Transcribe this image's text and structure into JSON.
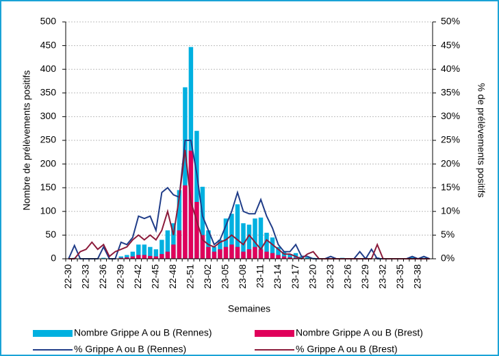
{
  "chart_data": {
    "type": "combo",
    "xlabel": "Semaines",
    "ylabel": "Nombre de prélèvements positifs",
    "y2label": "% de prélèvements positifs",
    "categories": [
      "22-30",
      null,
      null,
      "22-33",
      null,
      null,
      "22-36",
      null,
      null,
      "22-39",
      null,
      null,
      "22-42",
      null,
      null,
      "22-45",
      null,
      null,
      "22-48",
      null,
      null,
      "22-51",
      null,
      null,
      "23-02",
      null,
      null,
      "23-05",
      null,
      null,
      "23-08",
      null,
      null,
      "23-11",
      null,
      null,
      "23-14",
      null,
      null,
      "23-17",
      null,
      null,
      "23-20",
      null,
      null,
      "23-23",
      null,
      null,
      "23-26",
      null,
      null,
      "23-29",
      null,
      null,
      "23-32",
      null,
      null,
      "23-35",
      null,
      null,
      "23-38",
      null,
      null
    ],
    "ylim": [
      0,
      500
    ],
    "yticks": [
      0,
      50,
      100,
      150,
      200,
      250,
      300,
      350,
      400,
      450,
      500
    ],
    "y2lim": [
      0,
      50
    ],
    "y2ticks": [
      {
        "value": 0,
        "label": "0%"
      },
      {
        "value": 5,
        "label": "5%"
      },
      {
        "value": 10,
        "label": "10%"
      },
      {
        "value": 15,
        "label": "15%"
      },
      {
        "value": 20,
        "label": "20%"
      },
      {
        "value": 25,
        "label": "25%"
      },
      {
        "value": 30,
        "label": "30%"
      },
      {
        "value": 35,
        "label": "35%"
      },
      {
        "value": 40,
        "label": "40%"
      },
      {
        "value": 45,
        "label": "45%"
      },
      {
        "value": 50,
        "label": "50%"
      }
    ],
    "grid": true,
    "legend": "bottom",
    "series": [
      {
        "name": "Nombre Grippe A ou B (Rennes)",
        "type": "bar",
        "color": "#00b0e0",
        "values": [
          0,
          2,
          0,
          0,
          0,
          0,
          2,
          0,
          0,
          5,
          8,
          15,
          30,
          30,
          25,
          20,
          40,
          60,
          75,
          145,
          362,
          447,
          270,
          152,
          60,
          25,
          40,
          85,
          95,
          115,
          75,
          72,
          85,
          87,
          55,
          45,
          25,
          15,
          10,
          12,
          5,
          3,
          2,
          0,
          1,
          0,
          0,
          2,
          0,
          0,
          0,
          2,
          0,
          3,
          0,
          0,
          0,
          0,
          0,
          3,
          0,
          2,
          0
        ]
      },
      {
        "name": "Nombre Grippe A ou B (Brest)",
        "type": "bar",
        "color": "#e0005a",
        "values": [
          0,
          0,
          0,
          0,
          0,
          0,
          0,
          0,
          0,
          2,
          3,
          5,
          8,
          8,
          6,
          5,
          10,
          15,
          30,
          60,
          155,
          228,
          120,
          50,
          25,
          15,
          20,
          25,
          30,
          25,
          15,
          20,
          25,
          20,
          15,
          12,
          8,
          5,
          3,
          2,
          1,
          0,
          0,
          0,
          0,
          0,
          0,
          0,
          0,
          0,
          0,
          0,
          0,
          2,
          0,
          0,
          0,
          0,
          0,
          0,
          0,
          0,
          0
        ]
      },
      {
        "name": "% Grippe A ou B (Rennes)",
        "type": "line",
        "axis": "y2",
        "color": "#1f3c88",
        "values": [
          0,
          2.8,
          0,
          0,
          0,
          0,
          2.5,
          0,
          0,
          3.5,
          3,
          4.5,
          9,
          8.5,
          9,
          6,
          14,
          15,
          13.5,
          13,
          25,
          25,
          18,
          9,
          6,
          3,
          4,
          7,
          10,
          14,
          10,
          9.5,
          9.5,
          12.5,
          9,
          6.5,
          3,
          1.5,
          1.5,
          3,
          0.5,
          0.5,
          0,
          0,
          0,
          0.5,
          0,
          0,
          0,
          0,
          1.5,
          0,
          2,
          0,
          0,
          0,
          0,
          0,
          0,
          0.5,
          0,
          0.5,
          0
        ]
      },
      {
        "name": "% Grippe A ou B (Brest)",
        "type": "line",
        "axis": "y2",
        "color": "#8b1a3a",
        "values": [
          0,
          0,
          1.5,
          2,
          3.5,
          2,
          3,
          0.5,
          1.5,
          2,
          2.5,
          4,
          5,
          4,
          5,
          4,
          6,
          10,
          5,
          13,
          23,
          12,
          8,
          4,
          3,
          2.5,
          3.5,
          4,
          5,
          4,
          3,
          5,
          3.5,
          2,
          4,
          3,
          2,
          1,
          1,
          0.5,
          0,
          1,
          1.5,
          0,
          0,
          0,
          0,
          0,
          0,
          0,
          0,
          0,
          0,
          3,
          0,
          0,
          0,
          0,
          0,
          0,
          0,
          0,
          0
        ]
      }
    ]
  }
}
